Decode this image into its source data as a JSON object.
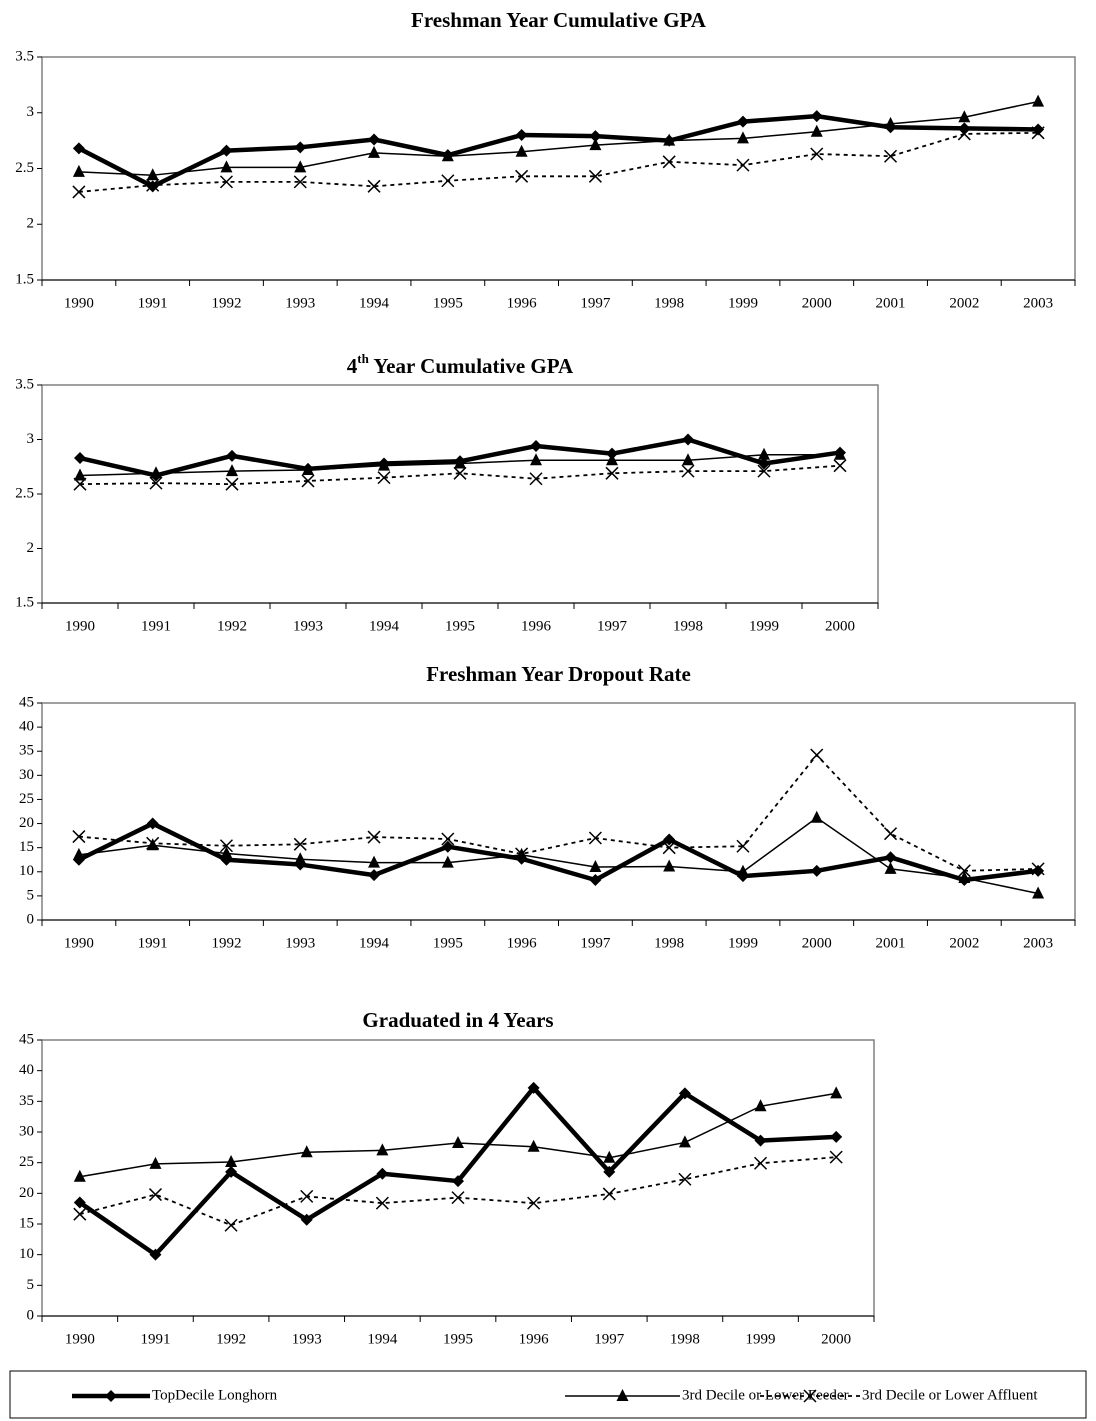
{
  "legend": {
    "series": [
      {
        "name": "TopDecile Longhorn",
        "color": "#000000",
        "marker": "diamond",
        "width": 4.5,
        "dash": "solid"
      },
      {
        "name": "3rd Decile or Lower Feeder",
        "color": "#000000",
        "marker": "triangle",
        "width": 1.5,
        "dash": "solid"
      },
      {
        "name": "3rd Decile or Lower Affluent",
        "color": "#000000",
        "marker": "x",
        "width": 1.8,
        "dash": "dotted"
      }
    ]
  },
  "chart_data": [
    {
      "type": "line",
      "title": "Freshman Year Cumulative GPA",
      "categories": [
        "1990",
        "1991",
        "1992",
        "1993",
        "1994",
        "1995",
        "1996",
        "1997",
        "1998",
        "1999",
        "2000",
        "2001",
        "2002",
        "2003"
      ],
      "series": [
        {
          "values": [
            2.68,
            2.34,
            2.66,
            2.69,
            2.76,
            2.62,
            2.8,
            2.79,
            2.75,
            2.92,
            2.97,
            2.87,
            2.86,
            2.85
          ]
        },
        {
          "values": [
            2.47,
            2.44,
            2.51,
            2.51,
            2.64,
            2.61,
            2.65,
            2.71,
            2.75,
            2.77,
            2.83,
            2.9,
            2.96,
            3.1
          ]
        },
        {
          "values": [
            2.29,
            2.35,
            2.38,
            2.38,
            2.34,
            2.39,
            2.43,
            2.43,
            2.56,
            2.53,
            2.63,
            2.61,
            2.81,
            2.82
          ]
        }
      ],
      "ylim": [
        1.5,
        3.5
      ],
      "yticks": [
        1.5,
        2,
        2.5,
        3,
        3.5
      ]
    },
    {
      "type": "line",
      "title": "4th Year Cumulative GPA",
      "categories": [
        "1990",
        "1991",
        "1992",
        "1993",
        "1994",
        "1995",
        "1996",
        "1997",
        "1998",
        "1999",
        "2000"
      ],
      "series": [
        {
          "values": [
            2.83,
            2.67,
            2.85,
            2.73,
            2.78,
            2.8,
            2.94,
            2.87,
            3.0,
            2.78,
            2.88
          ]
        },
        {
          "values": [
            2.67,
            2.69,
            2.71,
            2.72,
            2.76,
            2.78,
            2.81,
            2.81,
            2.81,
            2.86,
            2.86
          ]
        },
        {
          "values": [
            2.59,
            2.6,
            2.59,
            2.62,
            2.65,
            2.69,
            2.64,
            2.69,
            2.71,
            2.71,
            2.76
          ]
        }
      ],
      "ylim": [
        1.5,
        3.5
      ],
      "yticks": [
        1.5,
        2,
        2.5,
        3,
        3.5
      ]
    },
    {
      "type": "line",
      "title": "Freshman Year Dropout Rate",
      "categories": [
        "1990",
        "1991",
        "1992",
        "1993",
        "1994",
        "1995",
        "1996",
        "1997",
        "1998",
        "1999",
        "2000",
        "2001",
        "2002",
        "2003"
      ],
      "series": [
        {
          "values": [
            12.5,
            20.0,
            12.5,
            11.5,
            9.3,
            15.2,
            12.7,
            8.3,
            16.7,
            9.1,
            10.2,
            13.0,
            8.3,
            10.2
          ]
        },
        {
          "values": [
            13.5,
            15.5,
            13.8,
            12.6,
            11.9,
            11.9,
            13.5,
            11.0,
            11.1,
            10.0,
            21.2,
            10.6,
            8.7,
            5.5
          ]
        },
        {
          "values": [
            17.3,
            15.9,
            15.4,
            15.7,
            17.2,
            16.8,
            13.7,
            17.0,
            15.0,
            15.3,
            34.2,
            17.9,
            10.2,
            10.6
          ]
        }
      ],
      "ylim": [
        0,
        45
      ],
      "yticks": [
        0,
        5,
        10,
        15,
        20,
        25,
        30,
        35,
        40,
        45
      ]
    },
    {
      "type": "line",
      "title": "Graduated in 4 Years",
      "categories": [
        "1990",
        "1991",
        "1992",
        "1993",
        "1994",
        "1995",
        "1996",
        "1997",
        "1998",
        "1999",
        "2000"
      ],
      "series": [
        {
          "values": [
            18.5,
            10.0,
            23.5,
            15.7,
            23.2,
            22.0,
            37.2,
            23.5,
            36.3,
            28.6,
            29.2
          ]
        },
        {
          "values": [
            22.7,
            24.8,
            25.1,
            26.7,
            27.0,
            28.2,
            27.6,
            25.8,
            28.3,
            34.2,
            36.3
          ]
        },
        {
          "values": [
            16.6,
            19.8,
            14.8,
            19.5,
            18.4,
            19.3,
            18.4,
            19.9,
            22.3,
            24.9,
            25.9
          ]
        }
      ],
      "ylim": [
        0,
        45
      ],
      "yticks": [
        0,
        5,
        10,
        15,
        20,
        25,
        30,
        35,
        40,
        45
      ]
    }
  ]
}
